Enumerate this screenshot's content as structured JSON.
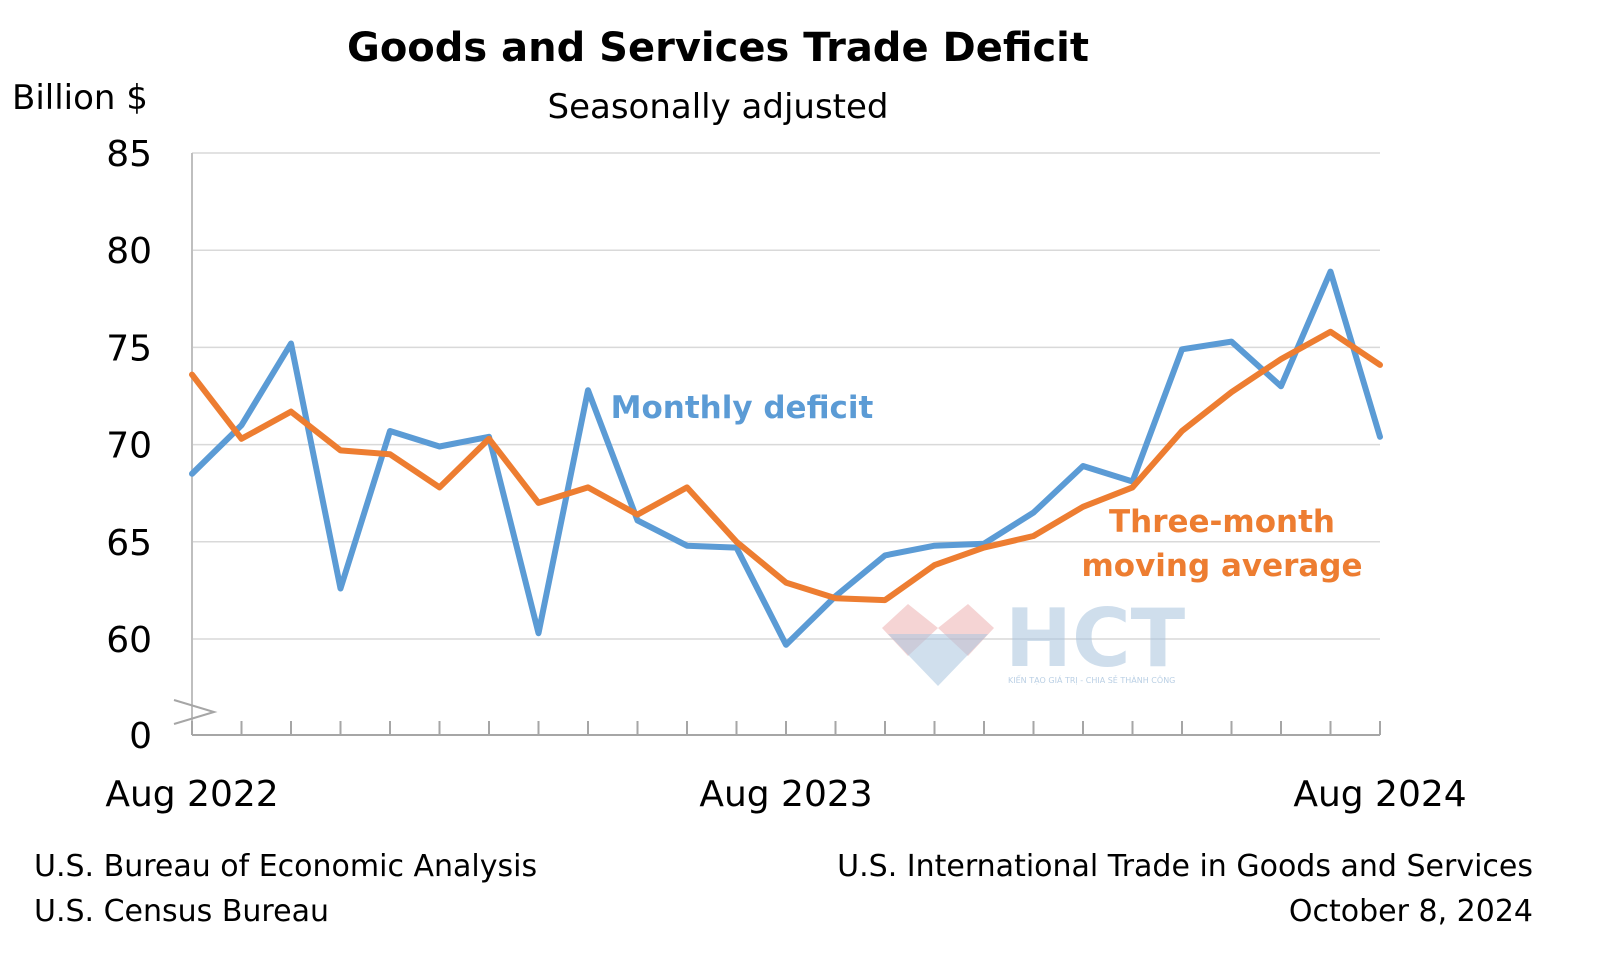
{
  "chart_data": {
    "type": "line",
    "title": "Goods and Services Trade Deficit",
    "subtitle": "Seasonally adjusted",
    "ylabel": "Billion $",
    "ylim": [
      60,
      85
    ],
    "y_break_bottom_tick": "0",
    "yticks": [
      60,
      65,
      70,
      75,
      80,
      85
    ],
    "grid": true,
    "x_tick_labels": [
      {
        "index": 0,
        "label": "Aug 2022"
      },
      {
        "index": 12,
        "label": "Aug 2023"
      },
      {
        "index": 24,
        "label": "Aug 2024"
      }
    ],
    "series": [
      {
        "name": "Monthly deficit",
        "color": "#5b9bd5",
        "values": [
          68.5,
          71.0,
          75.2,
          62.6,
          70.7,
          69.9,
          70.4,
          60.3,
          72.8,
          66.1,
          64.8,
          64.7,
          59.7,
          62.2,
          64.3,
          64.8,
          64.9,
          66.5,
          68.9,
          68.1,
          74.9,
          75.3,
          73.0,
          78.9,
          70.4
        ]
      },
      {
        "name": "Three-month moving average",
        "label_lines": [
          "Three-month",
          "moving average"
        ],
        "color": "#ed7d31",
        "values": [
          73.6,
          70.3,
          71.7,
          69.7,
          69.5,
          67.8,
          70.3,
          67.0,
          67.8,
          66.4,
          67.8,
          65.0,
          62.9,
          62.1,
          62.0,
          63.8,
          64.7,
          65.3,
          66.8,
          67.8,
          70.7,
          72.7,
          74.4,
          75.8,
          74.1
        ]
      }
    ]
  },
  "footer": {
    "left_line1": "U.S. Bureau of Economic Analysis",
    "left_line2": "U.S. Census Bureau",
    "right_line1": "U.S. International Trade in Goods and Services",
    "right_line2": "October 8, 2024"
  },
  "watermark": {
    "text": "HCT",
    "tagline": "KIẾN TẠO GIÁ TRỊ - CHIA SẺ THÀNH CÔNG",
    "colors": [
      "#e8a0a0",
      "#a9c4de"
    ]
  }
}
